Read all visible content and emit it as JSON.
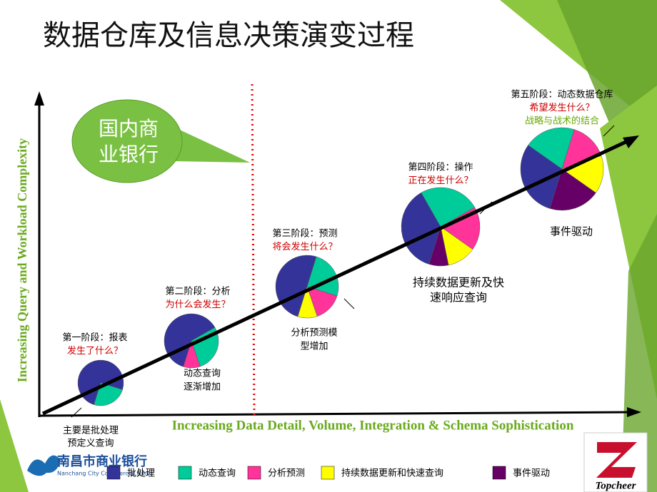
{
  "header": {
    "title": "数据仓库及信息决策演变过程"
  },
  "callout": {
    "lines": [
      "国内商",
      "业银行"
    ]
  },
  "axes": {
    "y_label": "Increasing Query and Workload Complexity",
    "x_label": "Increasing Data Detail, Volume, Integration & Schema Sophistication"
  },
  "stages": [
    {
      "lines": [
        "第一阶段：报表",
        "发生了什么？"
      ]
    },
    {
      "lines": [
        "第二阶段：分析",
        "为什么会发生？"
      ]
    },
    {
      "lines": [
        "第三阶段：预测",
        "将会发生什么？"
      ]
    },
    {
      "lines": [
        "第四阶段：操作",
        "正在发生什么？"
      ]
    },
    {
      "lines": [
        "第五阶段：动态数据仓库",
        "希望发生什么？",
        "战略与战术的结合"
      ]
    }
  ],
  "notes": [
    {
      "lines": [
        "主要是批处理",
        "预定义查询"
      ]
    },
    {
      "lines": [
        "动态查询",
        "逐渐增加"
      ]
    },
    {
      "lines": [
        "分析预测模",
        "型增加"
      ]
    },
    {
      "lines": [
        "持续数据更新及快",
        "速响应查询"
      ]
    },
    {
      "lines": [
        "事件驱动"
      ]
    }
  ],
  "legend": [
    "批处理",
    "动态查询",
    "分析预测",
    "持续数据更新和快速查询",
    "事件驱动"
  ],
  "logos": {
    "bank_name": "南昌市商业银行",
    "bank_english": "Nanchang City Commercial Bank",
    "company": "Topcheer"
  }
}
